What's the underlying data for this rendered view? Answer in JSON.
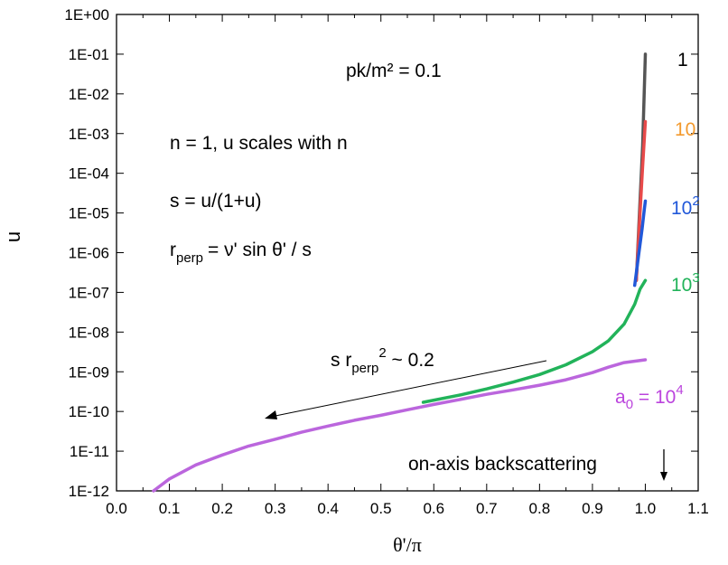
{
  "chart_data": {
    "type": "line",
    "xlabel": "θ'/π",
    "ylabel": "u",
    "xlim": [
      0.0,
      1.1
    ],
    "ylim": [
      1e-12,
      1
    ],
    "yscale": "log",
    "grid": false,
    "x_ticks": [
      "0.0",
      "0.1",
      "0.2",
      "0.3",
      "0.4",
      "0.5",
      "0.6",
      "0.7",
      "0.8",
      "0.9",
      "1.0",
      "1.1"
    ],
    "y_ticks": [
      "1E-12",
      "1E-11",
      "1E-10",
      "1E-09",
      "1E-08",
      "1E-07",
      "1E-06",
      "1E-05",
      "1E-04",
      "1E-03",
      "1E-02",
      "1E-01",
      "1E+00"
    ],
    "series": [
      {
        "name": "1",
        "color": "#555555",
        "x": [
          0.983,
          0.99,
          0.995,
          1.0
        ],
        "y": [
          2e-07,
          2e-05,
          0.0005,
          0.1
        ]
      },
      {
        "name": "10",
        "color": "#e84a4a",
        "x": [
          0.983,
          0.99,
          0.995,
          1.0
        ],
        "y": [
          2e-07,
          1e-05,
          0.00015,
          0.002
        ]
      },
      {
        "name": "10²",
        "color": "#2158d9",
        "x": [
          0.98,
          0.988,
          0.994,
          0.998,
          1.0
        ],
        "y": [
          1.5e-07,
          1e-06,
          4e-06,
          1.2e-05,
          2e-05
        ]
      },
      {
        "name": "10³",
        "color": "#22b35a",
        "x": [
          0.58,
          0.65,
          0.7,
          0.75,
          0.8,
          0.85,
          0.9,
          0.93,
          0.96,
          0.98,
          0.99,
          1.0
        ],
        "y": [
          1.7e-10,
          2.6e-10,
          3.7e-10,
          5.5e-10,
          8.5e-10,
          1.5e-09,
          3.2e-09,
          6e-09,
          1.6e-08,
          5e-08,
          1.2e-07,
          2e-07
        ]
      },
      {
        "name": "a₀ = 10⁴",
        "color": "#bb66dd",
        "x": [
          0.07,
          0.1,
          0.15,
          0.2,
          0.25,
          0.3,
          0.35,
          0.4,
          0.45,
          0.5,
          0.55,
          0.6,
          0.65,
          0.7,
          0.75,
          0.8,
          0.85,
          0.9,
          0.93,
          0.96,
          1.0
        ],
        "y": [
          1e-12,
          2e-12,
          4.5e-12,
          8e-12,
          1.35e-11,
          2e-11,
          3e-11,
          4.3e-11,
          6e-11,
          8e-11,
          1.1e-10,
          1.5e-10,
          2e-10,
          2.7e-10,
          3.5e-10,
          4.6e-10,
          6.3e-10,
          9.5e-10,
          1.3e-09,
          1.7e-09,
          2e-09
        ]
      }
    ],
    "annotations": {
      "ratio": "pk/m² = 0.1",
      "n_scaling": "n = 1, u scales with n",
      "s_def": "s = u/(1+u)",
      "r_perp": "r",
      "r_perp_sub": "perp",
      "r_perp_rest": "= ν' sin θ' / s",
      "s_r": "s r",
      "s_r_sub": "perp",
      "s_r_sup": "2",
      "s_r_rest": " ~ 0.2",
      "backscatter": "on-axis backscattering",
      "series_labels": {
        "one": "1",
        "ten": "10",
        "hundred_base": "10",
        "hundred_exp": "2",
        "thousand_base": "10",
        "thousand_exp": "3",
        "a0_base": "a",
        "a0_sub": "0",
        "a0_eq": " = 10",
        "a0_exp": "4"
      }
    }
  }
}
